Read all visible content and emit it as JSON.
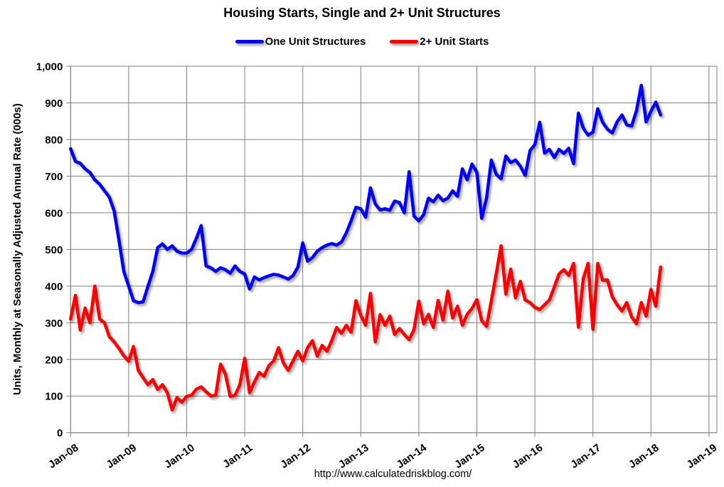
{
  "page": {
    "title": "Housing Starts, Single and 2+ Unit Structures",
    "footer_url": "http://www.calculatedriskblog.com/"
  },
  "legend": [
    {
      "label": "One Unit Structures",
      "color": "#0000FF"
    },
    {
      "label": "2+ Unit Starts",
      "color": "#FF0000"
    }
  ],
  "chart_data": {
    "type": "line",
    "title": "Housing Starts, Single and 2+ Unit Structures",
    "xlabel": "",
    "ylabel": "Units, Monthly at Seasonally Adjusted Annual Rate (000s)",
    "ylim": [
      0,
      1000
    ],
    "y_tick_step": 100,
    "y_tick_labels": [
      "0",
      "100",
      "200",
      "300",
      "400",
      "500",
      "600",
      "700",
      "800",
      "900",
      "1,000"
    ],
    "x_tick_labels": [
      "Jan-08",
      "Jan-09",
      "Jan-10",
      "Jan-11",
      "Jan-12",
      "Jan-13",
      "Jan-14",
      "Jan-15",
      "Jan-16",
      "Jan-17",
      "Jan-18",
      "Jan-19"
    ],
    "x_start": "2008-01",
    "x_end": "2018-03",
    "frequency": "monthly",
    "grid": true,
    "legend_position": "top",
    "grid_color": "#808080",
    "series": [
      {
        "name": "One Unit Structures",
        "color": "#0000FF",
        "values": [
          775,
          740,
          735,
          720,
          710,
          690,
          678,
          660,
          643,
          605,
          525,
          440,
          400,
          360,
          355,
          357,
          400,
          440,
          505,
          515,
          500,
          510,
          495,
          490,
          490,
          500,
          530,
          565,
          455,
          450,
          440,
          450,
          445,
          435,
          455,
          440,
          433,
          392,
          425,
          417,
          423,
          428,
          432,
          430,
          425,
          419,
          429,
          452,
          518,
          468,
          478,
          495,
          505,
          512,
          516,
          512,
          520,
          545,
          578,
          615,
          611,
          588,
          668,
          624,
          608,
          611,
          607,
          632,
          628,
          600,
          712,
          591,
          578,
          595,
          640,
          630,
          648,
          633,
          640,
          660,
          645,
          720,
          690,
          733,
          710,
          585,
          640,
          744,
          705,
          693,
          755,
          737,
          744,
          727,
          702,
          770,
          786,
          847,
          763,
          773,
          751,
          773,
          762,
          776,
          734,
          872,
          831,
          812,
          820,
          884,
          847,
          828,
          818,
          848,
          867,
          840,
          837,
          878,
          948,
          848,
          877,
          902,
          867
        ]
      },
      {
        "name": "2+ Unit Starts",
        "color": "#FF0000",
        "values": [
          310,
          375,
          280,
          340,
          300,
          400,
          310,
          300,
          262,
          248,
          230,
          210,
          195,
          235,
          170,
          150,
          131,
          145,
          118,
          131,
          109,
          62,
          96,
          83,
          99,
          102,
          119,
          125,
          112,
          100,
          102,
          187,
          160,
          99,
          102,
          131,
          203,
          109,
          138,
          164,
          154,
          183,
          196,
          232,
          190,
          170,
          196,
          222,
          196,
          232,
          251,
          209,
          238,
          222,
          251,
          287,
          271,
          293,
          274,
          360,
          320,
          293,
          380,
          248,
          322,
          293,
          318,
          268,
          284,
          268,
          254,
          281,
          359,
          297,
          323,
          287,
          361,
          307,
          386,
          313,
          345,
          293,
          323,
          339,
          363,
          306,
          290,
          360,
          433,
          510,
          378,
          446,
          368,
          413,
          362,
          355,
          342,
          336,
          349,
          362,
          397,
          433,
          445,
          429,
          462,
          288,
          420,
          462,
          282,
          462,
          416,
          417,
          371,
          349,
          332,
          355,
          316,
          297,
          355,
          318,
          391,
          345,
          452
        ]
      }
    ]
  }
}
